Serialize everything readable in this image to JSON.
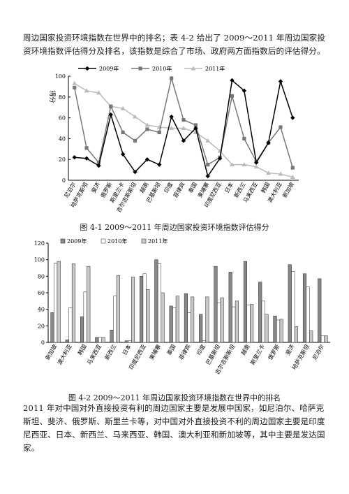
{
  "paragraph_top": "周边国家投资环境指数在世界中的排名；表 4-2 给出了 2009～2011 年周边国家投资环境指数评估得分及排名，该指数是综合了市场、政府两方面指数后的评估得分。",
  "paragraph_bottom": "2011 年对中国对外直接投资有利的周边国家主要是发展中国家，如尼泊尔、哈萨克斯坦、斐济、俄罗斯、斯里兰卡等，对中国对外直接投资不利的周边国家主要是印度尼西亚、日本、新西兰、马来西亚、韩国、澳大利亚和新加坡等，其中主要是发达国家。",
  "captions": {
    "fig1": "图 4-1  2009～2011 年周边国家投资环境指数评估得分",
    "fig2": "图 4-2  2009～2011 年周边国家投资环境指数在世界中的排名"
  },
  "chart_data": [
    {
      "type": "line",
      "title": "",
      "ylabel": "得分",
      "xlabel": "",
      "ylim": [
        0,
        100
      ],
      "yticks": [
        0,
        20,
        40,
        60,
        80,
        100
      ],
      "legend_position": "top",
      "grid": false,
      "categories": [
        "尼泊尔",
        "哈萨克斯坦",
        "斐济",
        "俄罗斯",
        "斯里兰卡",
        "吉尔吉斯斯坦",
        "越南",
        "巴基斯坦",
        "印度",
        "菲律宾",
        "泰国",
        "柬埔寨",
        "印度尼西亚",
        "日本",
        "新西兰",
        "马来西亚",
        "韩国",
        "澳大利亚",
        "新加坡"
      ],
      "series": [
        {
          "name": "2009年",
          "color": "#000000",
          "marker": "diamond",
          "values": [
            22,
            21,
            14,
            63,
            25,
            8,
            20,
            15,
            61,
            38,
            50,
            4,
            21,
            96,
            86,
            17,
            36,
            95,
            60
          ]
        },
        {
          "name": "2010年",
          "color": "#777777",
          "marker": "square",
          "values": [
            89,
            31,
            17,
            71,
            46,
            38,
            49,
            46,
            98,
            58,
            53,
            15,
            22,
            81,
            40,
            18,
            36,
            51,
            12
          ]
        },
        {
          "name": "2011年",
          "color": "#bbbbbb",
          "marker": "triangle",
          "values": [
            93,
            86,
            84,
            71,
            69,
            61,
            53,
            51,
            50,
            50,
            46,
            38,
            28,
            15,
            15,
            13,
            7,
            6,
            3
          ]
        }
      ]
    },
    {
      "type": "bar",
      "title": "",
      "ylabel": "",
      "xlabel": "",
      "ylim": [
        0,
        120
      ],
      "yticks": [
        0,
        20,
        40,
        60,
        80,
        100,
        120
      ],
      "legend_position": "top",
      "grid": false,
      "categories": [
        "新加坡",
        "澳大利亚",
        "韩国",
        "马来西亚",
        "新西兰",
        "日本",
        "印度尼西亚",
        "柬埔寨",
        "泰国",
        "菲律宾",
        "印度",
        "巴基斯坦",
        "吉尔吉斯斯坦",
        "越南",
        "斯里兰卡",
        "俄罗斯",
        "斐济",
        "哈萨克斯坦",
        "尼泊尔"
      ],
      "series": [
        {
          "name": "2009年",
          "color": "#888888",
          "values": [
            36,
            3,
            31,
            6,
            15,
            2,
            80,
            100,
            44,
            59,
            34,
            92,
            85,
            98,
            73,
            32,
            94,
            83,
            77
          ]
        },
        {
          "name": "2010年",
          "color": "#ffffff",
          "values": [
            96,
            42,
            61,
            6,
            56,
            2,
            83,
            95,
            42,
            36,
            2,
            48,
            43,
            45,
            50,
            27,
            86,
            67,
            8
          ]
        },
        {
          "name": "2011年",
          "color": "#c8c8c8",
          "values": [
            98,
            95,
            92,
            6,
            81,
            79,
            64,
            60,
            56,
            55,
            55,
            54,
            50,
            46,
            34,
            28,
            19,
            14,
            8
          ]
        }
      ]
    }
  ]
}
